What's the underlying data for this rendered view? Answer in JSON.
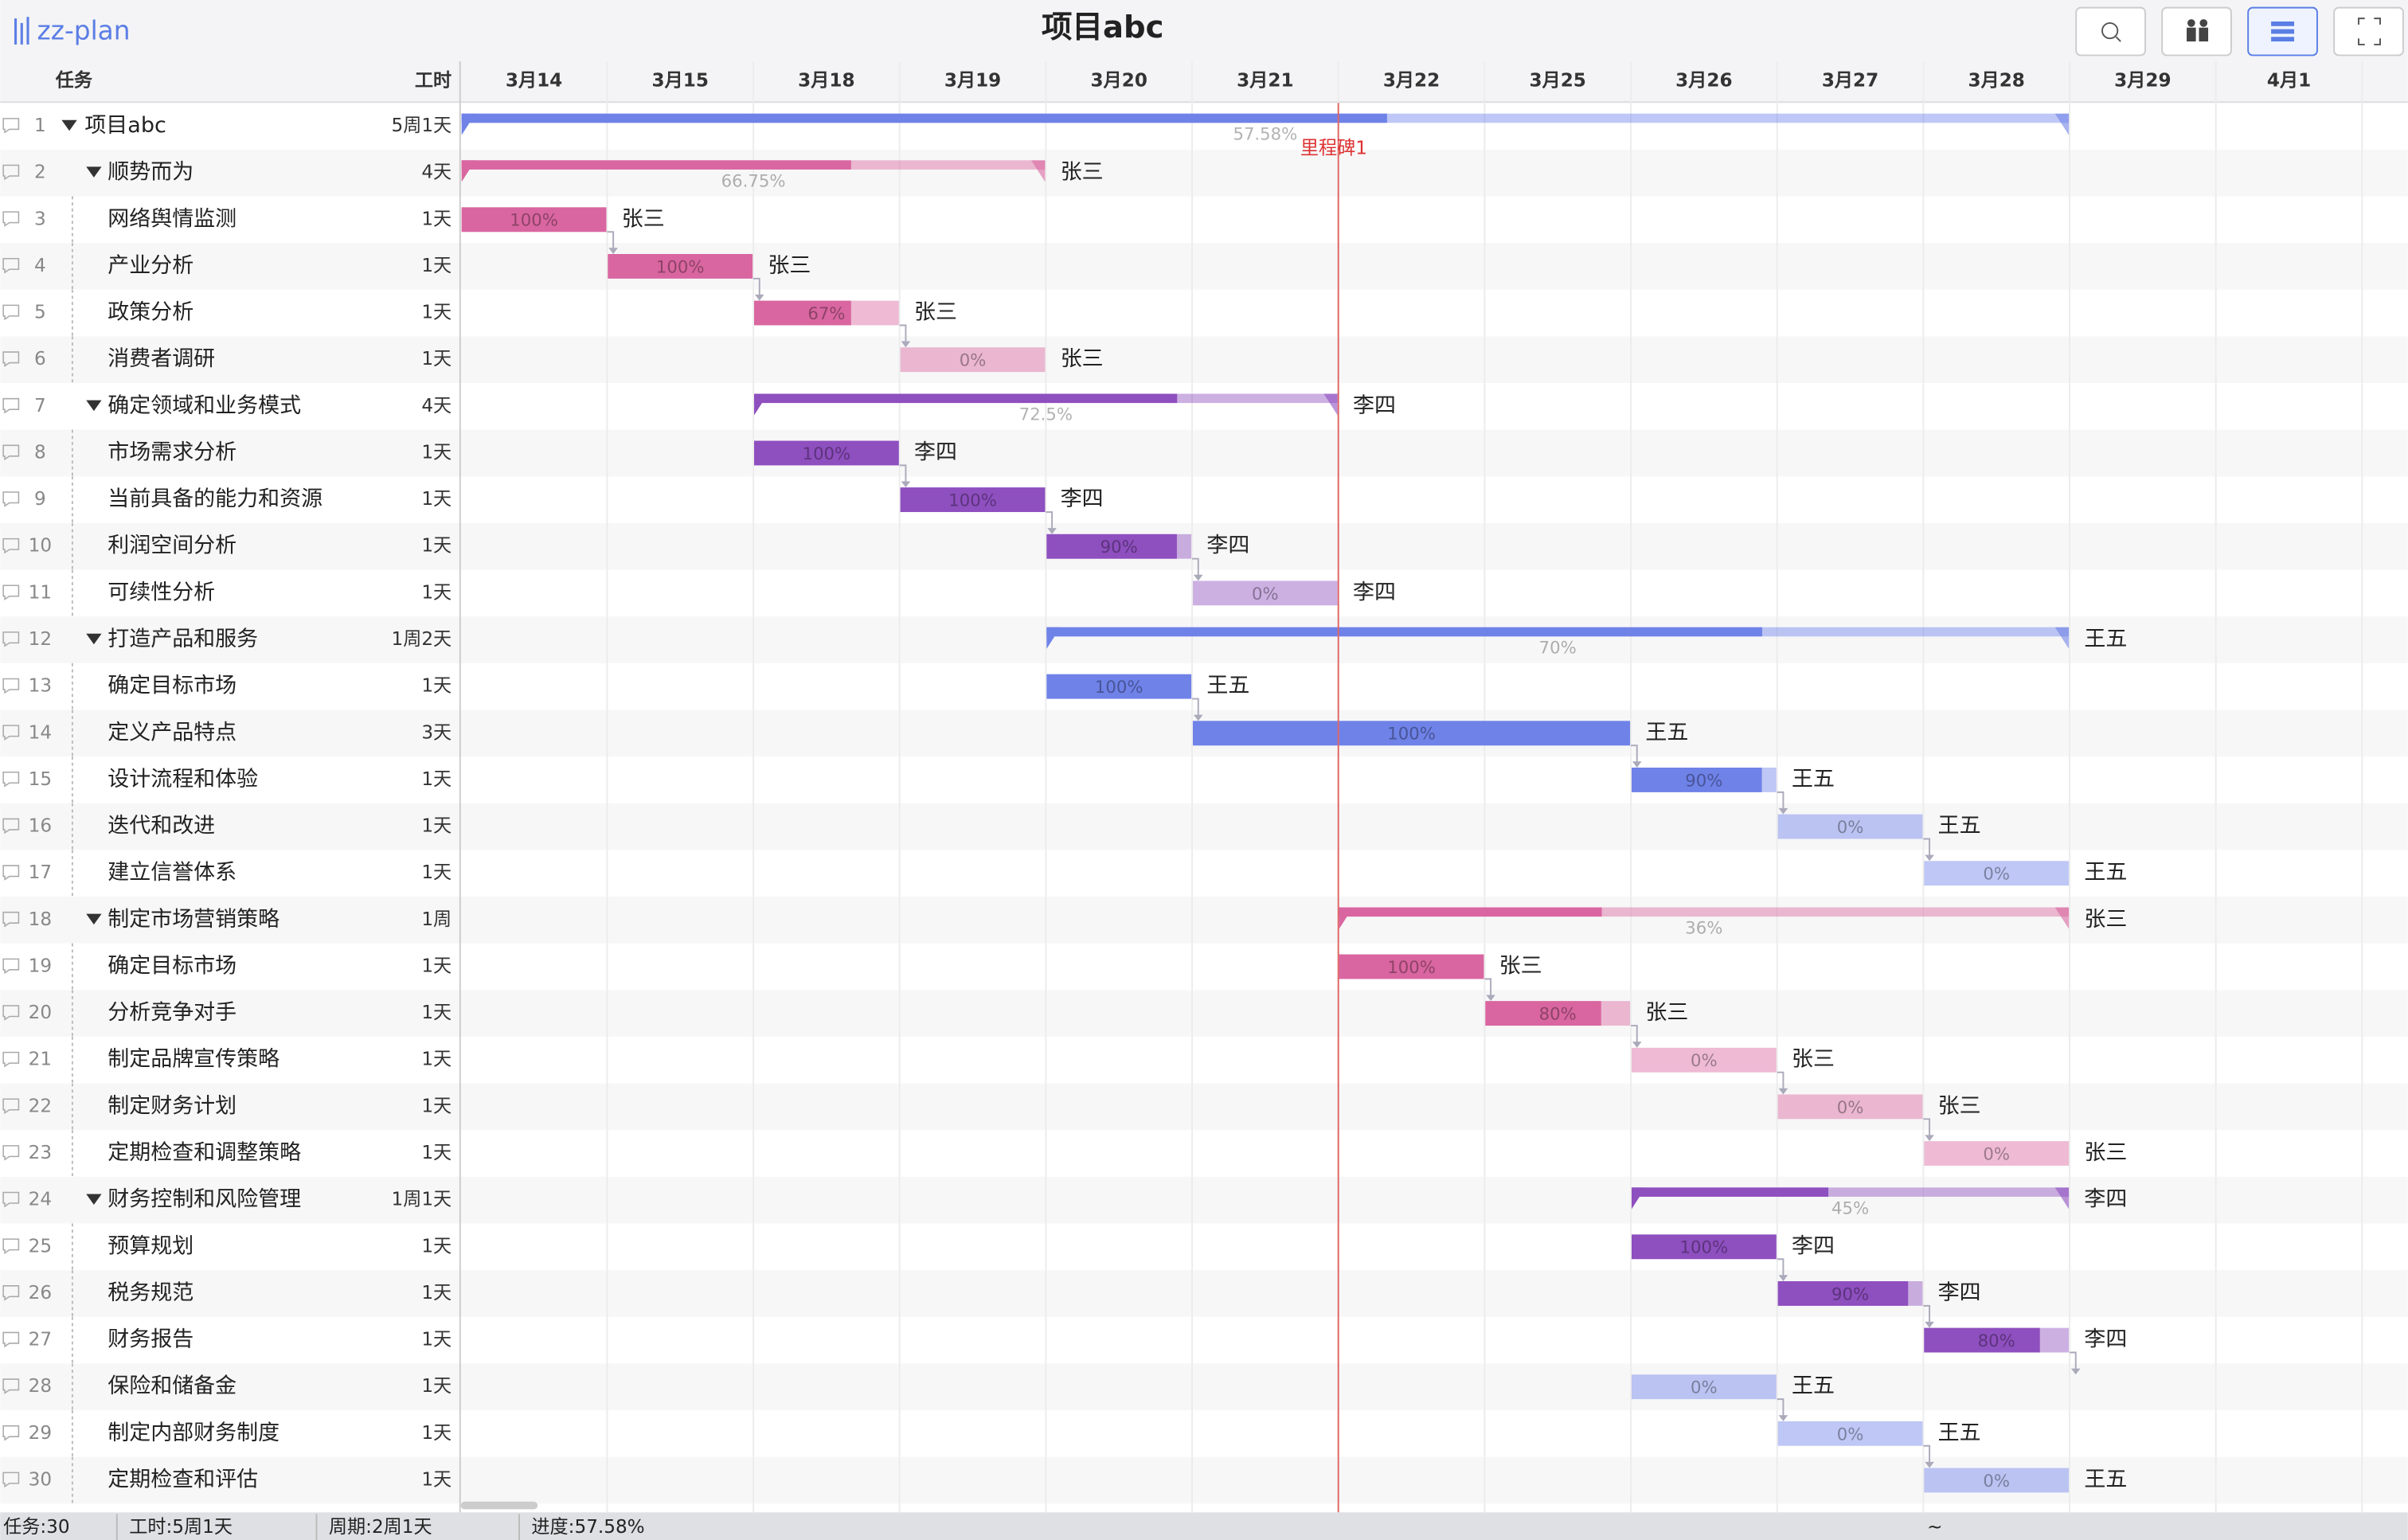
{
  "header": {
    "app": "zz-plan",
    "title": "项目abc"
  },
  "columns": {
    "task": "任务",
    "duration": "工时"
  },
  "dates": [
    "3月14",
    "3月15",
    "3月18",
    "3月19",
    "3月20",
    "3月21",
    "3月22",
    "3月25",
    "3月26",
    "3月27",
    "3月28",
    "3月29",
    "4月1"
  ],
  "project": {
    "no": 1,
    "name": "项目abc",
    "duration": "5周1天",
    "start": "3月14",
    "end": "3月28",
    "progress": 57.58,
    "progress_label": "57.58%",
    "color": "#6f82e8",
    "milestone": {
      "label": "里程碑1",
      "date": "3月22"
    },
    "groups": [
      {
        "no": 2,
        "name": "顺势而为",
        "duration": "4天",
        "owner": "张三",
        "start": "3月14",
        "end": "3月19",
        "progress": 66.75,
        "progress_label": "66.75%",
        "color": "#d966a0",
        "tasks": [
          {
            "no": 3,
            "name": "网络舆情监测",
            "duration": "1天",
            "owner": "张三",
            "start": "3月14",
            "end": "3月14",
            "progress": 100,
            "progress_label": "100%",
            "color": "#d966a0"
          },
          {
            "no": 4,
            "name": "产业分析",
            "duration": "1天",
            "owner": "张三",
            "start": "3月15",
            "end": "3月15",
            "progress": 100,
            "progress_label": "100%",
            "color": "#d966a0"
          },
          {
            "no": 5,
            "name": "政策分析",
            "duration": "1天",
            "owner": "张三",
            "start": "3月18",
            "end": "3月18",
            "progress": 67,
            "progress_label": "67%",
            "color": "#d966a0"
          },
          {
            "no": 6,
            "name": "消费者调研",
            "duration": "1天",
            "owner": "张三",
            "start": "3月19",
            "end": "3月19",
            "progress": 0,
            "progress_label": "0%",
            "color": "#d966a0"
          }
        ]
      },
      {
        "no": 7,
        "name": "确定领域和业务模式",
        "duration": "4天",
        "owner": "李四",
        "start": "3月18",
        "end": "3月21",
        "progress": 72.5,
        "progress_label": "72.5%",
        "color": "#8e4fbf",
        "tasks": [
          {
            "no": 8,
            "name": "市场需求分析",
            "duration": "1天",
            "owner": "李四",
            "start": "3月18",
            "end": "3月18",
            "progress": 100,
            "progress_label": "100%",
            "color": "#8e4fbf"
          },
          {
            "no": 9,
            "name": "当前具备的能力和资源",
            "duration": "1天",
            "owner": "李四",
            "start": "3月19",
            "end": "3月19",
            "progress": 100,
            "progress_label": "100%",
            "color": "#8e4fbf"
          },
          {
            "no": 10,
            "name": "利润空间分析",
            "duration": "1天",
            "owner": "李四",
            "start": "3月20",
            "end": "3月20",
            "progress": 90,
            "progress_label": "90%",
            "color": "#8e4fbf"
          },
          {
            "no": 11,
            "name": "可续性分析",
            "duration": "1天",
            "owner": "李四",
            "start": "3月21",
            "end": "3月21",
            "progress": 0,
            "progress_label": "0%",
            "color": "#8e4fbf"
          }
        ]
      },
      {
        "no": 12,
        "name": "打造产品和服务",
        "duration": "1周2天",
        "owner": "王五",
        "start": "3月20",
        "end": "3月28",
        "progress": 70,
        "progress_label": "70%",
        "color": "#6f82e8",
        "tasks": [
          {
            "no": 13,
            "name": "确定目标市场",
            "duration": "1天",
            "owner": "王五",
            "start": "3月20",
            "end": "3月20",
            "progress": 100,
            "progress_label": "100%",
            "color": "#6f82e8"
          },
          {
            "no": 14,
            "name": "定义产品特点",
            "duration": "3天",
            "owner": "王五",
            "start": "3月21",
            "end": "3月25",
            "progress": 100,
            "progress_label": "100%",
            "color": "#6f82e8"
          },
          {
            "no": 15,
            "name": "设计流程和体验",
            "duration": "1天",
            "owner": "王五",
            "start": "3月26",
            "end": "3月26",
            "progress": 90,
            "progress_label": "90%",
            "color": "#6f82e8"
          },
          {
            "no": 16,
            "name": "迭代和改进",
            "duration": "1天",
            "owner": "王五",
            "start": "3月27",
            "end": "3月27",
            "progress": 0,
            "progress_label": "0%",
            "color": "#6f82e8"
          },
          {
            "no": 17,
            "name": "建立信誉体系",
            "duration": "1天",
            "owner": "王五",
            "start": "3月28",
            "end": "3月28",
            "progress": 0,
            "progress_label": "0%",
            "color": "#6f82e8"
          }
        ]
      },
      {
        "no": 18,
        "name": "制定市场营销策略",
        "duration": "1周",
        "owner": "张三",
        "start": "3月22",
        "end": "3月28",
        "progress": 36,
        "progress_label": "36%",
        "color": "#d966a0",
        "tasks": [
          {
            "no": 19,
            "name": "确定目标市场",
            "duration": "1天",
            "owner": "张三",
            "start": "3月22",
            "end": "3月22",
            "progress": 100,
            "progress_label": "100%",
            "color": "#d966a0"
          },
          {
            "no": 20,
            "name": "分析竞争对手",
            "duration": "1天",
            "owner": "张三",
            "start": "3月25",
            "end": "3月25",
            "progress": 80,
            "progress_label": "80%",
            "color": "#d966a0"
          },
          {
            "no": 21,
            "name": "制定品牌宣传策略",
            "duration": "1天",
            "owner": "张三",
            "start": "3月26",
            "end": "3月26",
            "progress": 0,
            "progress_label": "0%",
            "color": "#d966a0"
          },
          {
            "no": 22,
            "name": "制定财务计划",
            "duration": "1天",
            "owner": "张三",
            "start": "3月27",
            "end": "3月27",
            "progress": 0,
            "progress_label": "0%",
            "color": "#d966a0"
          },
          {
            "no": 23,
            "name": "定期检查和调整策略",
            "duration": "1天",
            "owner": "张三",
            "start": "3月28",
            "end": "3月28",
            "progress": 0,
            "progress_label": "0%",
            "color": "#d966a0"
          }
        ]
      },
      {
        "no": 24,
        "name": "财务控制和风险管理",
        "duration": "1周1天",
        "owner": "李四",
        "start": "3月26",
        "end": "3月28",
        "progress": 45,
        "progress_label": "45%",
        "color": "#8e4fbf",
        "tasks": [
          {
            "no": 25,
            "name": "预算规划",
            "duration": "1天",
            "owner": "李四",
            "start": "3月26",
            "end": "3月26",
            "progress": 100,
            "progress_label": "100%",
            "color": "#8e4fbf"
          },
          {
            "no": 26,
            "name": "税务规范",
            "duration": "1天",
            "owner": "李四",
            "start": "3月27",
            "end": "3月27",
            "progress": 90,
            "progress_label": "90%",
            "color": "#8e4fbf"
          },
          {
            "no": 27,
            "name": "财务报告",
            "duration": "1天",
            "owner": "李四",
            "start": "3月28",
            "end": "3月28",
            "progress": 80,
            "progress_label": "80%",
            "color": "#8e4fbf"
          },
          {
            "no": 28,
            "name": "保险和储备金",
            "duration": "1天",
            "owner": "王五",
            "start": "3月26",
            "end": "3月26",
            "progress": 0,
            "progress_label": "0%",
            "color": "#6f82e8"
          },
          {
            "no": 29,
            "name": "制定内部财务制度",
            "duration": "1天",
            "owner": "王五",
            "start": "3月27",
            "end": "3月27",
            "progress": 0,
            "progress_label": "0%",
            "color": "#6f82e8"
          },
          {
            "no": 30,
            "name": "定期检查和评估",
            "duration": "1天",
            "owner": "王五",
            "start": "3月28",
            "end": "3月28",
            "progress": 0,
            "progress_label": "0%",
            "color": "#6f82e8"
          }
        ]
      }
    ]
  },
  "footer": [
    "任务:30",
    "工时:5周1天",
    "周期:2周1天",
    "进度:57.58%",
    "~"
  ]
}
